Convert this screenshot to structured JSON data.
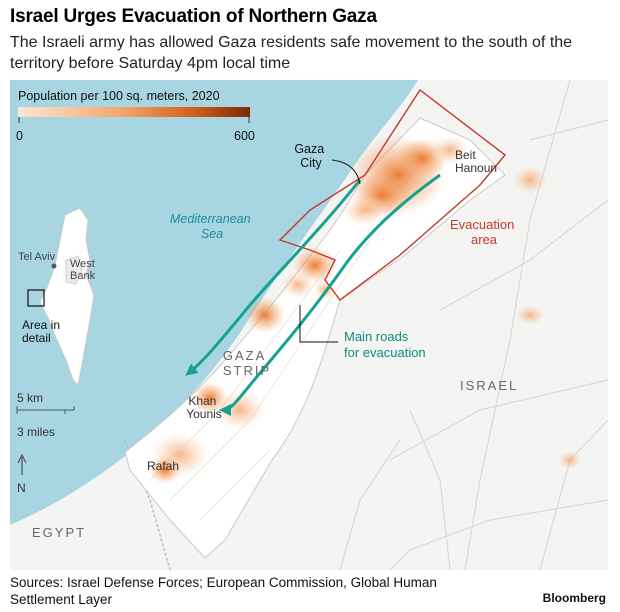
{
  "header": {
    "title": "Israel Urges Evacuation of Northern Gaza",
    "subtitle": "The Israeli army has allowed Gaza residents safe movement to the south of the territory before Saturday 4pm local time"
  },
  "legend": {
    "title": "Population per 100 sq. meters, 2020",
    "min_label": "0",
    "max_label": "600",
    "min_value": 0,
    "max_value": 600,
    "color_low": "#fbe7d6",
    "color_high": "#7a2a05"
  },
  "labels": {
    "gaza_city": [
      "Gaza",
      "City"
    ],
    "beit_hanoun": [
      "Beit",
      "Hanoun"
    ],
    "mediterranean": [
      "Mediterranean",
      "Sea"
    ],
    "evacuation": [
      "Evacuation",
      "area"
    ],
    "main_roads": [
      "Main roads",
      "for evacuation"
    ],
    "gaza_strip": [
      "GAZA",
      "STRIP"
    ],
    "israel": "ISRAEL",
    "khan_younis": [
      "Khan",
      "Younis"
    ],
    "rafah": "Rafah",
    "egypt": "EGYPT"
  },
  "inset": {
    "tel_aviv": "Tel Aviv",
    "west_bank": [
      "West",
      "Bank"
    ],
    "area_detail": [
      "Area in",
      "detail"
    ]
  },
  "scale": {
    "km_label": "5 km",
    "miles_label": "3 miles",
    "north_label": "N"
  },
  "colors": {
    "sea": "#a8d5e2",
    "land": "#f4f4f2",
    "gaza_fill": "#ffffff",
    "evacuation": "#c0392b",
    "roads": "#16a191",
    "sea_text": "#1e8e9e",
    "road_text": "#0e8a7c"
  },
  "footer": {
    "sources": "Sources: Israel Defense Forces; European Commission, Global Human Settlement Layer",
    "brand": "Bloomberg"
  }
}
